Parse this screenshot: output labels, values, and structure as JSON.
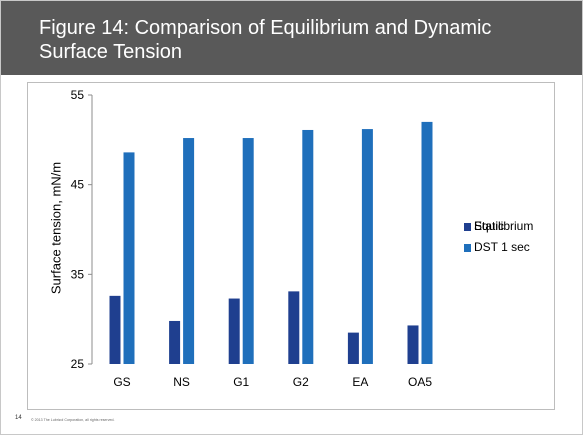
{
  "slide": {
    "title": "Figure 14: Comparison of Equilibrium and Dynamic Surface Tension",
    "page_number": "14",
    "copyright": "© 2013 The Lubrizol Corporation, all rights reserved."
  },
  "colors": {
    "title_bar": "#595959",
    "static": "#1f3f8f",
    "dst": "#1f6fbb"
  },
  "chart_data": {
    "type": "bar",
    "title": "",
    "xlabel": "",
    "ylabel": "Surface tension, mN/m",
    "ylim": [
      25,
      55
    ],
    "yticks": [
      25,
      35,
      45,
      55
    ],
    "categories": [
      "GS",
      "NS",
      "G1",
      "G2",
      "EA",
      "OA5"
    ],
    "series": [
      {
        "name": "Static",
        "overlay_name": "Equilibrium",
        "values": [
          32.6,
          29.8,
          32.3,
          33.1,
          28.5,
          29.3
        ]
      },
      {
        "name": "DST 1 sec",
        "values": [
          48.6,
          50.2,
          50.2,
          51.1,
          51.2,
          52.0
        ]
      }
    ],
    "grid": false,
    "legend_position": "right"
  }
}
